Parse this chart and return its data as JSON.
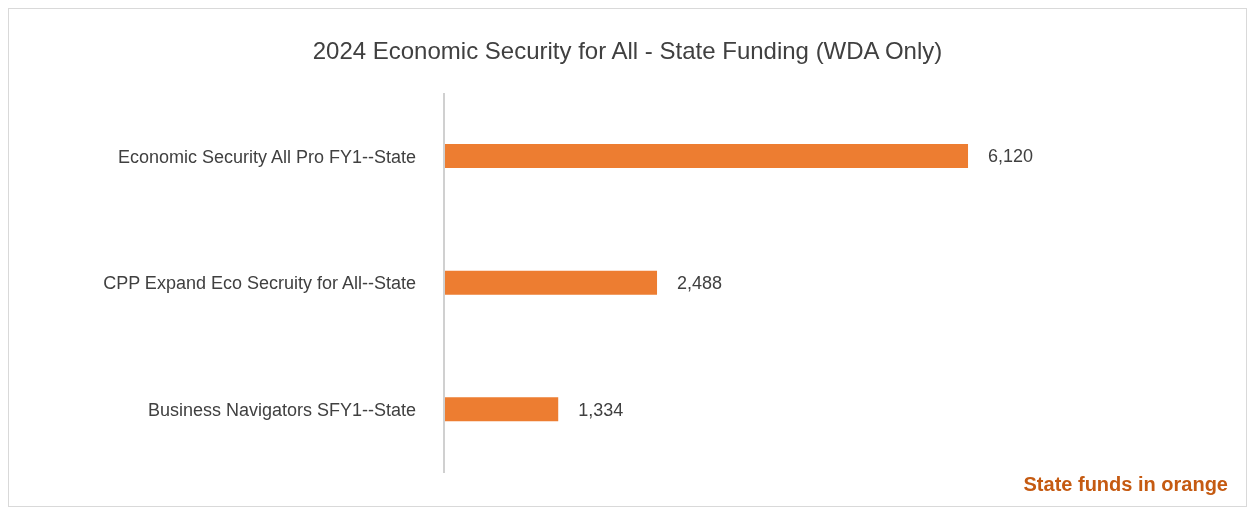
{
  "chart_data": {
    "type": "bar",
    "orientation": "horizontal",
    "title": "2024 Economic Security for All - State Funding (WDA Only)",
    "categories": [
      "Economic Security All Pro FY1--State",
      "CPP Expand Eco Secruity for All--State",
      "Business Navigators SFY1--State"
    ],
    "values": [
      6120,
      2488,
      1334
    ],
    "value_labels": [
      "6,120",
      "2,488",
      "1,334"
    ],
    "color": "#ed7d31",
    "annotations": [
      "State funds in orange"
    ]
  }
}
